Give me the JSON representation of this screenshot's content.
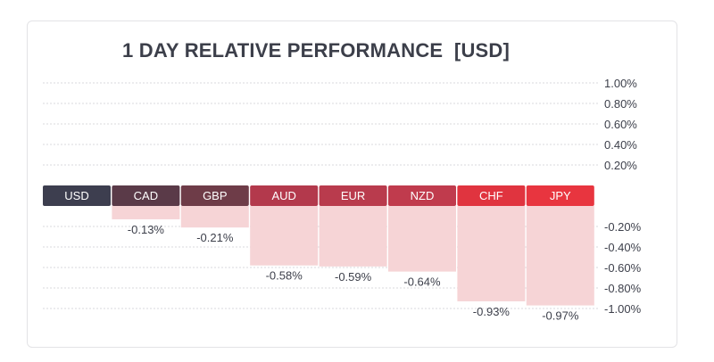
{
  "title": "1 DAY RELATIVE PERFORMANCE  [USD]",
  "chart_data": {
    "type": "bar",
    "title": "1 DAY RELATIVE PERFORMANCE  [USD]",
    "categories": [
      "USD",
      "CAD",
      "GBP",
      "AUD",
      "EUR",
      "NZD",
      "CHF",
      "JPY"
    ],
    "values": [
      0.0,
      -0.13,
      -0.21,
      -0.58,
      -0.59,
      -0.64,
      -0.93,
      -0.97
    ],
    "value_labels": [
      "",
      "-0.13%",
      "-0.21%",
      "-0.58%",
      "-0.59%",
      "-0.64%",
      "-0.93%",
      "-0.97%"
    ],
    "positive_ticks": [
      "1.00%",
      "0.80%",
      "0.60%",
      "0.40%",
      "0.20%"
    ],
    "negative_ticks": [
      "-0.20%",
      "-0.40%",
      "-0.60%",
      "-0.80%",
      "-1.00%"
    ],
    "ylim": [
      -1.0,
      1.0
    ],
    "grid": true,
    "header_colors": [
      "#3d3e4f",
      "#5a3a48",
      "#6e3c48",
      "#b3394c",
      "#b93b4d",
      "#c03b4d",
      "#e0343f",
      "#e8353f"
    ],
    "bar_fill_color": "#f6d4d6"
  }
}
